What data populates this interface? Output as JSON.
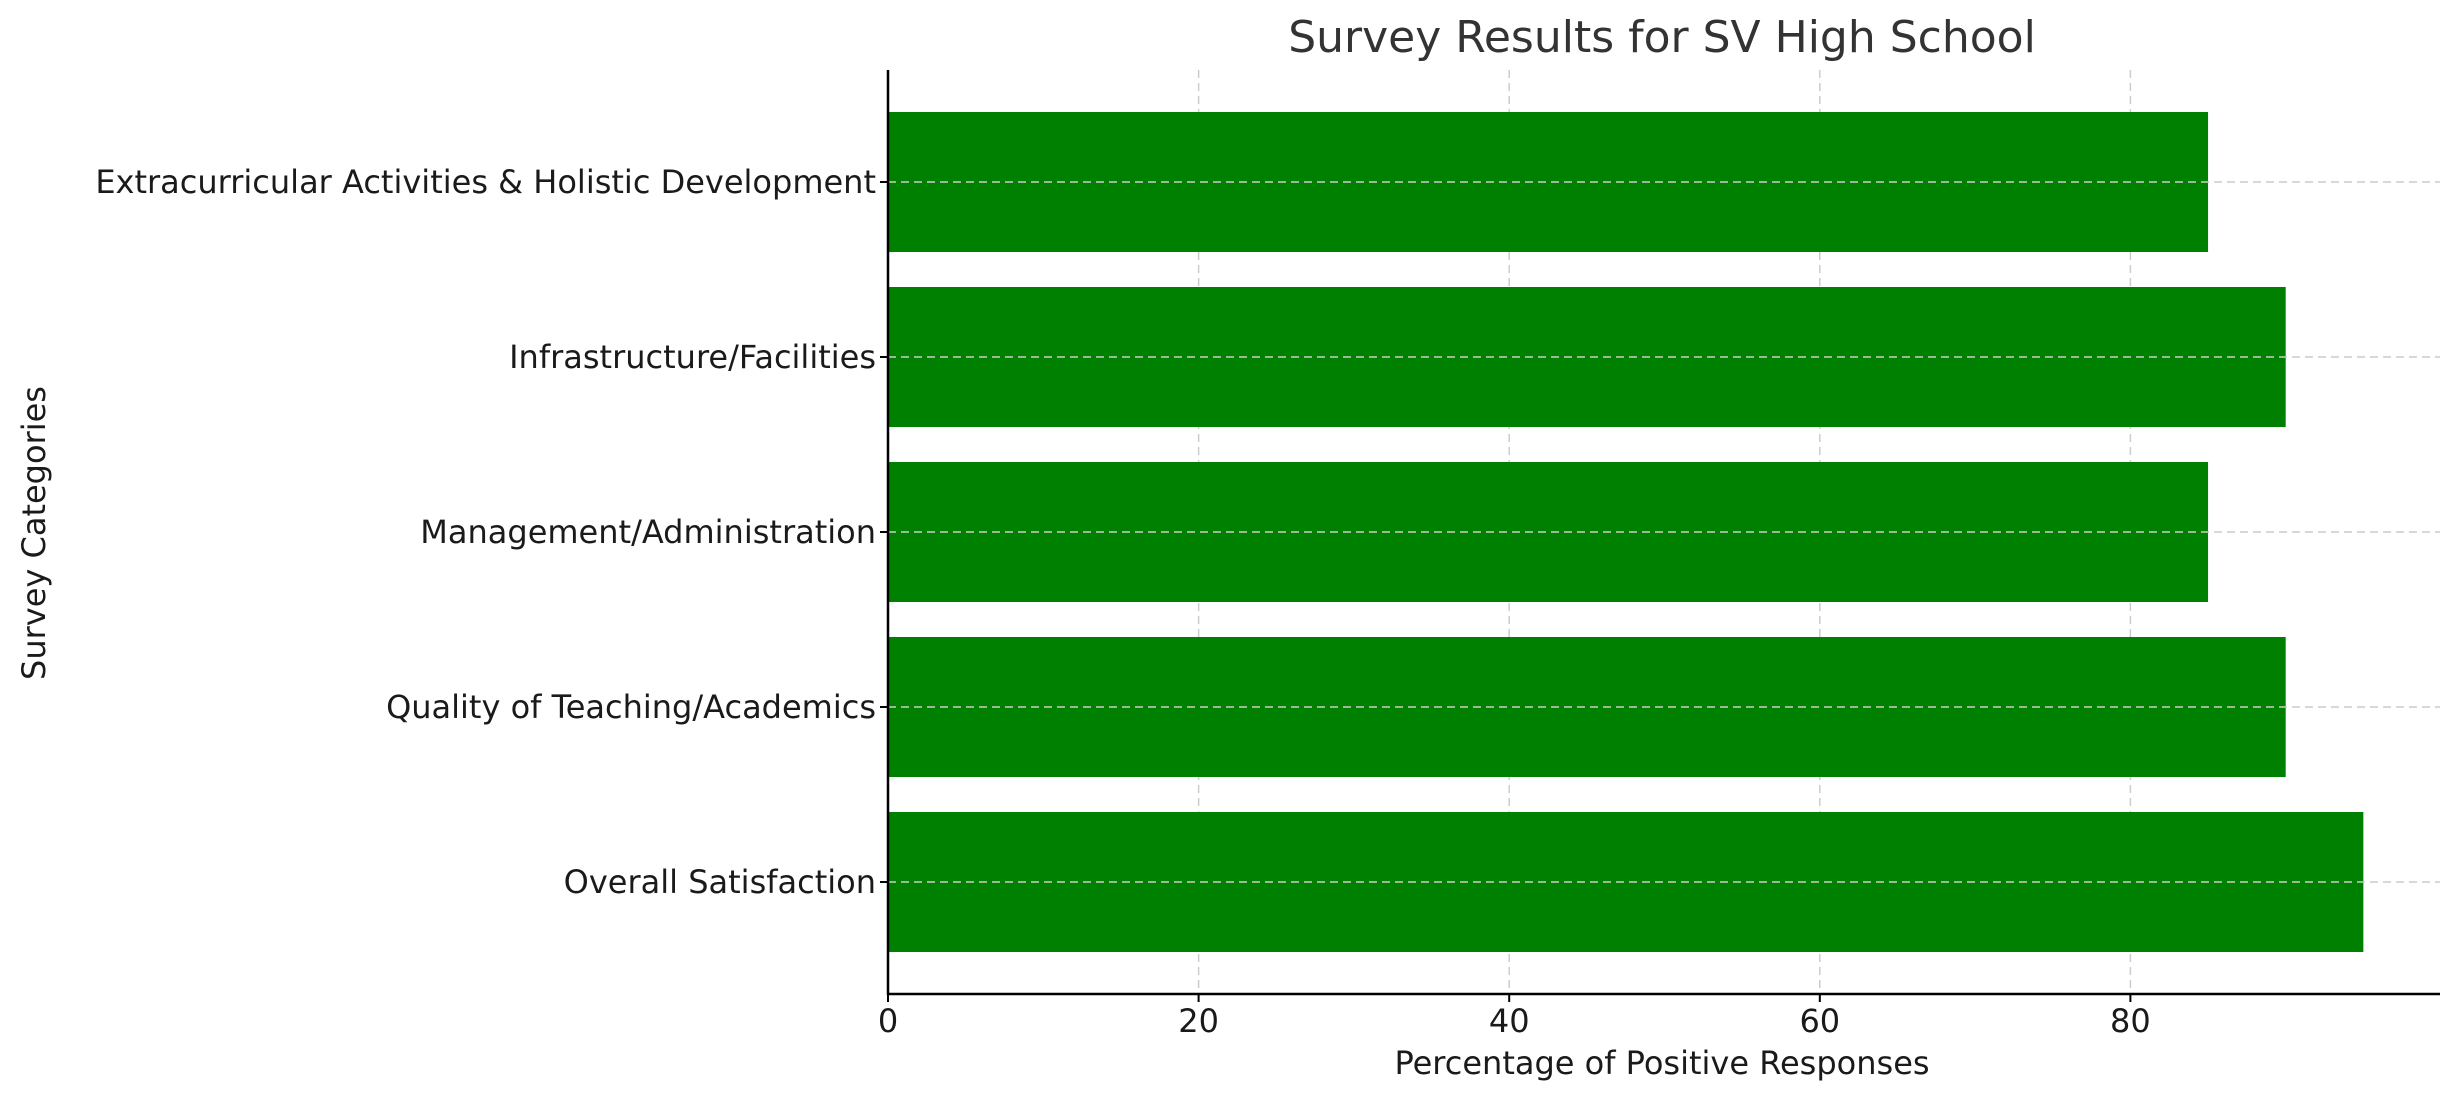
{
  "chart_data": {
    "type": "bar",
    "orientation": "horizontal",
    "title": "Survey Results for SV High School",
    "xlabel": "Percentage of Positive Responses",
    "ylabel": "Survey Categories",
    "categories": [
      "Overall Satisfaction",
      "Quality of Teaching/Academics",
      "Management/Administration",
      "Infrastructure/Facilities",
      "Extracurricular Activities & Holistic Development"
    ],
    "values": [
      95,
      90,
      85,
      90,
      85
    ],
    "xlim": [
      0,
      100
    ],
    "xticks": [
      0,
      20,
      40,
      60,
      80
    ],
    "bar_color": "#008000",
    "grid": true
  }
}
